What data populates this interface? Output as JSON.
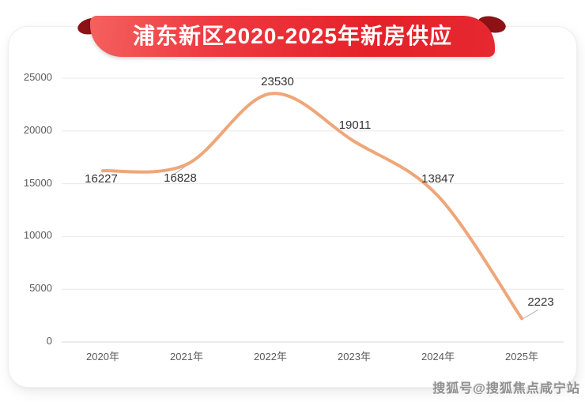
{
  "title": "浦东新区2020-2025年新房供应",
  "watermark": "搜狐号@搜狐焦点咸宁站",
  "chart_data": {
    "type": "line",
    "title": "浦东新区2020-2025年新房供应",
    "categories": [
      "2020年",
      "2021年",
      "2022年",
      "2023年",
      "2024年",
      "2025年"
    ],
    "values": [
      16227,
      16828,
      23530,
      19011,
      13847,
      2223
    ],
    "y_ticks": [
      0,
      5000,
      10000,
      15000,
      20000,
      25000
    ],
    "ylim": [
      0,
      25000
    ],
    "xlabel": "",
    "ylabel": "",
    "grid": true,
    "legend": "none",
    "smooth": true,
    "line_color": "#efa679"
  },
  "colors": {
    "ribbon_red": "#e62129",
    "ribbon_fold": "#8c1216",
    "line": "#efa679",
    "gridline": "#e8e8e8",
    "axis_line": "#d9d9d9",
    "leader_line": "#aaaaaa",
    "axis_text": "#595959",
    "label_text": "#333333"
  }
}
